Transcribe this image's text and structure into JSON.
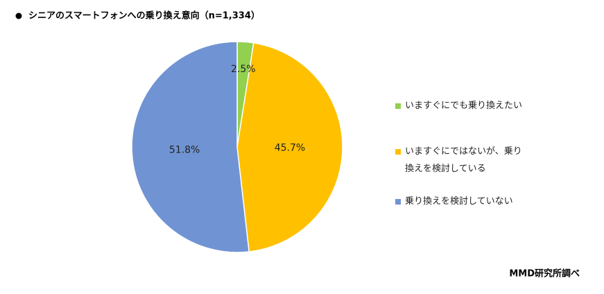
{
  "chart_data": {
    "type": "pie",
    "title": "シニアのスマートフォンへの乗り換え意向（n=1,334）",
    "categories": [
      "いますぐにでも乗り換えたい",
      "いますぐにではないが、乗り換えを検討している",
      "乗り換えを検討していない"
    ],
    "values": [
      2.5,
      45.7,
      51.8
    ],
    "value_labels": [
      "2.5%",
      "45.7%",
      "51.8%"
    ],
    "colors": [
      "#92d050",
      "#ffc000",
      "#7094d3"
    ],
    "legend": "right",
    "source": "MMD研究所調べ"
  }
}
